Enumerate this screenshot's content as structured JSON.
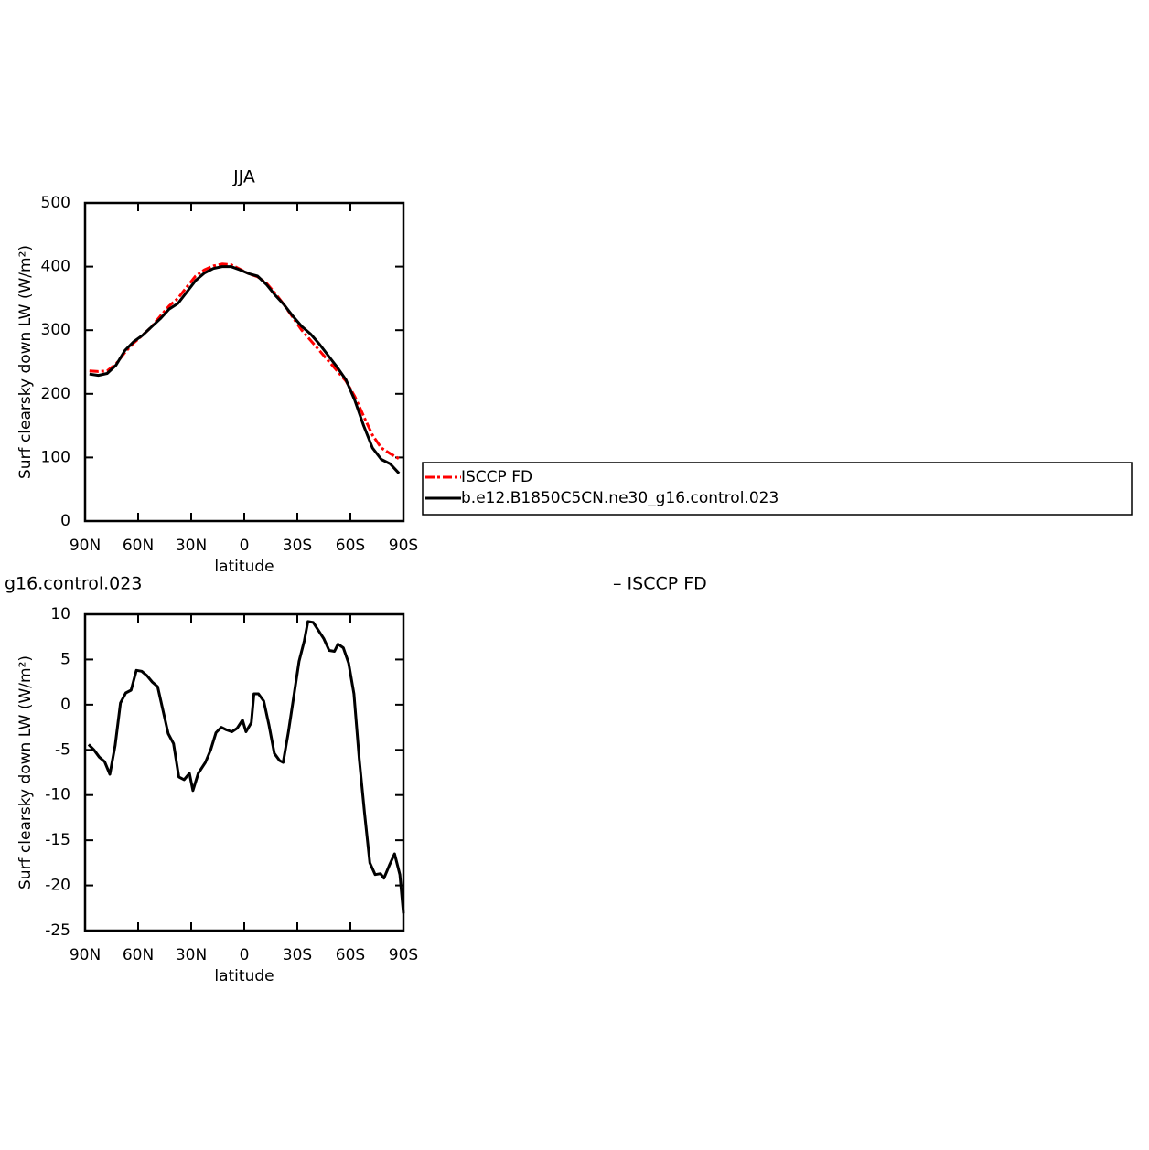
{
  "chart_data": [
    {
      "type": "line",
      "title": "JJA",
      "x_label": "latitude",
      "y_label": "Surf clearsky down LW (W/m²)",
      "x": [
        87.5,
        82.5,
        77.5,
        72.5,
        67.5,
        62.5,
        57.5,
        52.5,
        47.5,
        42.5,
        37.5,
        32.5,
        27.5,
        22.5,
        17.5,
        12.5,
        7.5,
        2.5,
        -2.5,
        -7.5,
        -12.5,
        -17.5,
        -22.5,
        -27.5,
        -32.5,
        -37.5,
        -42.5,
        -47.5,
        -52.5,
        -57.5,
        -62.5,
        -67.5,
        -72.5,
        -77.5,
        -82.5,
        -87.5
      ],
      "series": [
        {
          "name": "ISCCP FD",
          "color": "#ff0000",
          "linestyle": "dashed",
          "values": [
            236,
            235,
            236,
            247,
            265,
            280,
            292,
            305,
            322,
            338,
            350,
            368,
            385,
            395,
            401,
            404,
            403,
            396,
            389,
            384,
            374,
            358,
            340,
            320,
            300,
            284,
            268,
            252,
            236,
            220,
            196,
            165,
            135,
            115,
            106,
            98
          ]
        },
        {
          "name": "b.e12.B1850C5CN.ne30_g16.control.023",
          "color": "#000000",
          "linestyle": "solid",
          "values": [
            231,
            229,
            232,
            245,
            268,
            282,
            292,
            305,
            318,
            333,
            342,
            360,
            378,
            390,
            397,
            400,
            400,
            395,
            389,
            385,
            372,
            355,
            340,
            322,
            306,
            294,
            278,
            260,
            242,
            222,
            190,
            150,
            115,
            97,
            90,
            75
          ]
        }
      ],
      "xlim": [
        90,
        -90
      ],
      "xticks": [
        {
          "value": 90,
          "label": "90N"
        },
        {
          "value": 60,
          "label": "60N"
        },
        {
          "value": 30,
          "label": "30N"
        },
        0,
        {
          "value": -30,
          "label": "30S"
        },
        {
          "value": -60,
          "label": "60S"
        },
        {
          "value": -90,
          "label": "90S"
        }
      ],
      "ylim": [
        0,
        500
      ],
      "yticks": [
        0,
        100,
        200,
        300,
        400,
        500
      ]
    },
    {
      "type": "line",
      "left_title": "g16.control.023",
      "right_title": "– ISCCP FD",
      "x_label": "latitude",
      "y_label": "Surf clearsky down LW (W/m²)",
      "x": [
        88,
        85,
        82,
        79,
        76,
        73,
        70,
        67,
        64,
        61,
        58,
        55,
        52,
        49,
        46,
        43,
        40,
        37,
        34,
        31,
        29,
        26,
        22,
        19,
        16,
        13,
        10,
        7,
        4,
        1,
        -1,
        -4,
        -5.5,
        -8,
        -11,
        -14,
        -17,
        -20,
        -22,
        -25,
        -28,
        -31,
        -34,
        -36,
        -39,
        -42,
        -45,
        -48,
        -51,
        -53,
        -56,
        -59,
        -62,
        -65,
        -68,
        -71,
        -74,
        -77,
        -79,
        -82,
        -85,
        -88,
        -90
      ],
      "values": [
        -4.4,
        -5.0,
        -5.8,
        -6.3,
        -7.7,
        -4.5,
        0.2,
        1.3,
        1.6,
        3.8,
        3.7,
        3.2,
        2.5,
        2.0,
        -0.6,
        -3.2,
        -4.3,
        -8.0,
        -8.3,
        -7.6,
        -9.5,
        -7.6,
        -6.4,
        -5.0,
        -3.1,
        -2.5,
        -2.8,
        -3.0,
        -2.6,
        -1.7,
        -3.0,
        -2.0,
        1.2,
        1.2,
        0.4,
        -2.3,
        -5.4,
        -6.2,
        -6.4,
        -3.0,
        0.9,
        4.8,
        7.1,
        9.2,
        9.1,
        8.2,
        7.3,
        6.0,
        5.9,
        6.7,
        6.3,
        4.6,
        1.2,
        -6.0,
        -12.0,
        -17.5,
        -18.8,
        -18.7,
        -19.2,
        -17.8,
        -16.5,
        -18.8,
        -23.1
      ],
      "color": "#000000",
      "xlim": [
        90,
        -90
      ],
      "xticks": [
        {
          "value": 90,
          "label": "90N"
        },
        {
          "value": 60,
          "label": "60N"
        },
        {
          "value": 30,
          "label": "30N"
        },
        0,
        {
          "value": -30,
          "label": "30S"
        },
        {
          "value": -60,
          "label": "60S"
        },
        {
          "value": -90,
          "label": "90S"
        }
      ],
      "ylim": [
        -25,
        10
      ],
      "yticks": [
        -25,
        -20,
        -15,
        -10,
        -5,
        0,
        5,
        10
      ]
    }
  ]
}
